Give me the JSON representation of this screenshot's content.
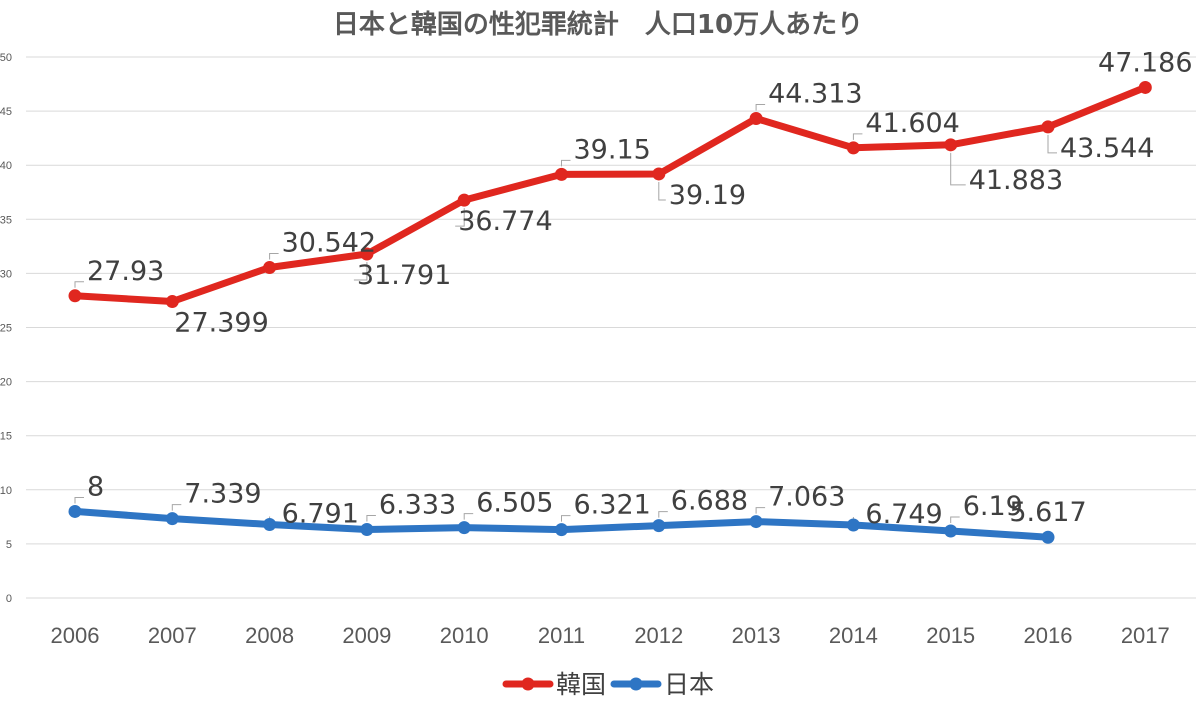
{
  "chart_data": {
    "type": "line",
    "title": "日本と韓国の性犯罪統計　人口10万人あたり",
    "categories": [
      "2006",
      "2007",
      "2008",
      "2009",
      "2010",
      "2011",
      "2012",
      "2013",
      "2014",
      "2015",
      "2016",
      "2017"
    ],
    "ylim": [
      0,
      50
    ],
    "yticks": [
      "0",
      "5",
      "10",
      "15",
      "20",
      "25",
      "30",
      "35",
      "40",
      "45",
      "50"
    ],
    "grid": true,
    "legend": "bottom",
    "series": [
      {
        "name": "韓国",
        "color": "#e0271f",
        "values": [
          27.93,
          27.399,
          30.542,
          31.791,
          36.774,
          39.15,
          39.19,
          44.313,
          41.604,
          41.883,
          43.544,
          47.186
        ],
        "labels": [
          "27.93",
          "27.399",
          "30.542",
          "31.791",
          "36.774",
          "39.15",
          "39.19",
          "44.313",
          "41.604",
          "41.883",
          "43.544",
          "47.186"
        ]
      },
      {
        "name": "日本",
        "color": "#2e75c4",
        "values": [
          8,
          7.339,
          6.791,
          6.333,
          6.505,
          6.321,
          6.688,
          7.063,
          6.749,
          6.19,
          5.617,
          null
        ],
        "labels": [
          "8",
          "7.339",
          "6.791",
          "6.333",
          "6.505",
          "6.321",
          "6.688",
          "7.063",
          "6.749",
          "6.19",
          "5.617",
          ""
        ]
      }
    ]
  }
}
